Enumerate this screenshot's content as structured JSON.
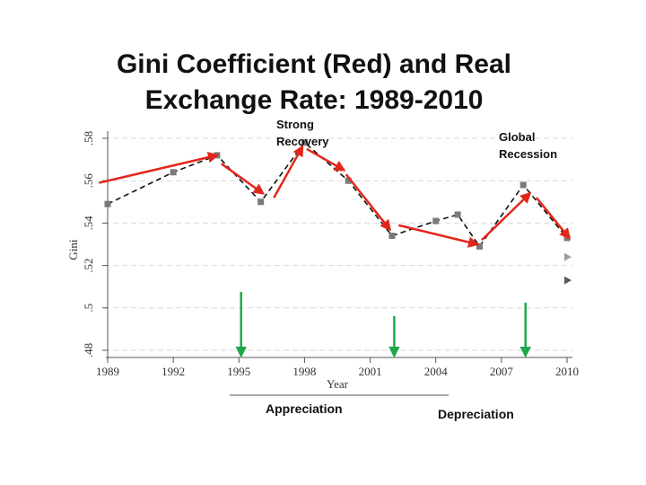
{
  "title": {
    "line1": "Gini Coefficient (Red) and Real",
    "line2": "Exchange Rate: 1989-2010"
  },
  "chart_data": {
    "type": "line",
    "title": "Gini Coefficient (Red) and Real Exchange Rate: 1989-2010",
    "xlabel": "Year",
    "ylabel": "Gini",
    "xlim": [
      1989,
      2010
    ],
    "ylim": [
      0.48,
      0.58
    ],
    "xticks": [
      1989,
      1992,
      1995,
      1998,
      2001,
      2004,
      2007,
      2010
    ],
    "xtick_labels": [
      "1989",
      "1992",
      "1995",
      "1998",
      "2001",
      "2004",
      "2007",
      "2010"
    ],
    "yticks": [
      0.48,
      0.5,
      0.52,
      0.54,
      0.56,
      0.58
    ],
    "ytick_labels": [
      ".48",
      ".5",
      ".52",
      ".54",
      ".56",
      ".58"
    ],
    "grid": true,
    "series": [
      {
        "name": "Gini",
        "style": "dashed",
        "color": "#111111",
        "x": [
          1989,
          1992,
          1994,
          1996,
          1998,
          2000,
          2002,
          2004,
          2005,
          2006,
          2008,
          2010
        ],
        "y": [
          0.549,
          0.564,
          0.572,
          0.55,
          0.578,
          0.56,
          0.534,
          0.541,
          0.544,
          0.529,
          0.558,
          0.533
        ]
      }
    ],
    "extra_points": [
      {
        "x": 2010,
        "y": 0.524,
        "color": "#9aa0a6"
      },
      {
        "x": 2010,
        "y": 0.513,
        "color": "#555b63"
      }
    ],
    "red_trend_arrows": [
      {
        "from": [
          1988.6,
          0.559
        ],
        "to": [
          1994,
          0.572
        ]
      },
      {
        "from": [
          1994.2,
          0.568
        ],
        "to": [
          1996.1,
          0.554
        ]
      },
      {
        "from": [
          1996.6,
          0.552
        ],
        "to": [
          1997.9,
          0.576
        ]
      },
      {
        "from": [
          1998.1,
          0.575
        ],
        "to": [
          1999.8,
          0.565
        ]
      },
      {
        "from": [
          1999.9,
          0.563
        ],
        "to": [
          2001.9,
          0.537
        ]
      },
      {
        "from": [
          2002.3,
          0.539
        ],
        "to": [
          2005.9,
          0.53
        ]
      },
      {
        "from": [
          2006.1,
          0.532
        ],
        "to": [
          2008.3,
          0.554
        ]
      },
      {
        "from": [
          2008.6,
          0.552
        ],
        "to": [
          2010.1,
          0.533
        ]
      }
    ],
    "green_period_arrows": [
      {
        "x": 1995.1,
        "label": ""
      },
      {
        "x": 2002.1,
        "label": ""
      },
      {
        "x": 2008.1,
        "label": ""
      }
    ],
    "annotations": {
      "strong_recovery": "Strong Recovery",
      "global_recession": "Global Recession",
      "appreciation": "Appreciation",
      "depreciation": "Depreciation"
    }
  },
  "colors": {
    "trend": "#e3261b",
    "period": "#1fa84b",
    "marker": "#7a7a7a",
    "line": "#111111"
  }
}
